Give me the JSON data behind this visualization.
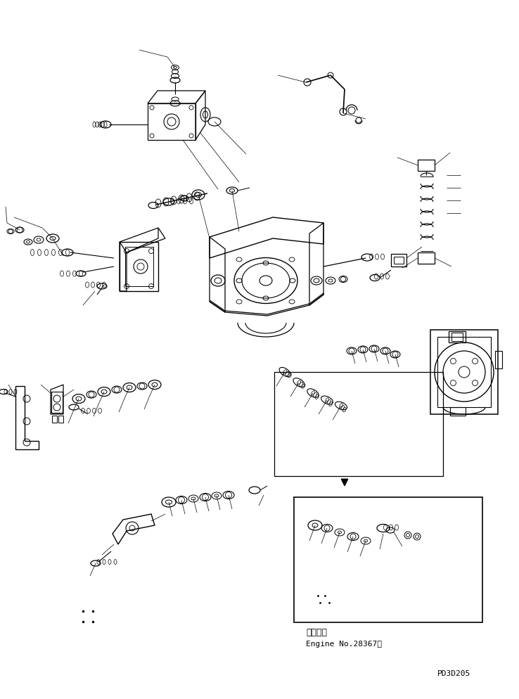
{
  "background_color": "#ffffff",
  "line_color": "#000000",
  "fig_width": 7.38,
  "fig_height": 9.95,
  "dpi": 100,
  "bottom_text_line1": "適用号機",
  "bottom_text_line2": "Engine No.28367〜",
  "bottom_code": "PD3D205"
}
